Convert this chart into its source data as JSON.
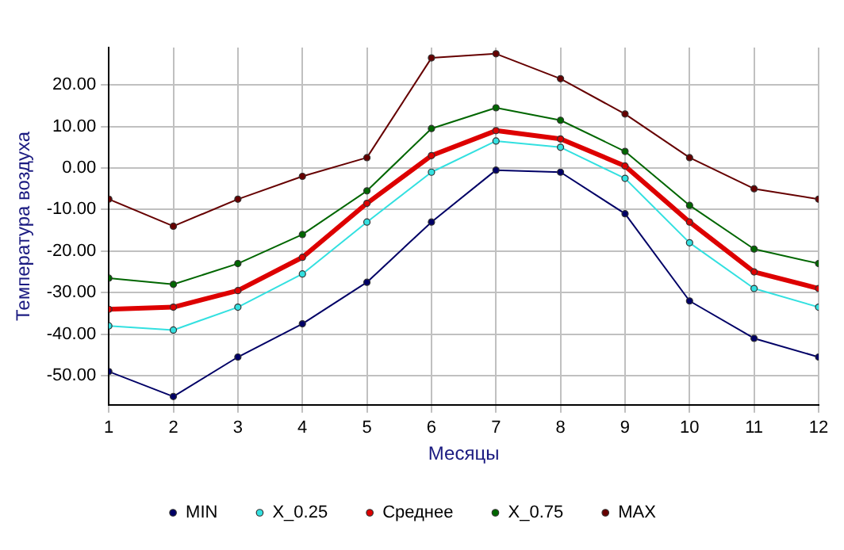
{
  "chart_data": {
    "type": "line",
    "xlabel": "Месяцы",
    "ylabel": "Температура воздуха",
    "x": [
      1,
      2,
      3,
      4,
      5,
      6,
      7,
      8,
      9,
      10,
      11,
      12
    ],
    "series": [
      {
        "name": "MIN",
        "color": "#000066",
        "values": [
          -49,
          -55,
          -45.5,
          -37.5,
          -27.5,
          -13,
          -0.5,
          -1,
          -11,
          -32,
          -41,
          -45.5
        ]
      },
      {
        "name": "X_0.25",
        "color": "#33e0e0",
        "values": [
          -38,
          -39,
          -33.5,
          -25.5,
          -13,
          -1,
          6.5,
          5,
          -2.5,
          -18,
          -29,
          -33.5
        ]
      },
      {
        "name": "Среднее",
        "color": "#dd0000",
        "values": [
          -34,
          -33.5,
          -29.5,
          -21.5,
          -8.5,
          3,
          9,
          7,
          0.5,
          -13,
          -25,
          -29
        ]
      },
      {
        "name": "X_0.75",
        "color": "#006600",
        "values": [
          -26.5,
          -28,
          -23,
          -16,
          -5.5,
          9.5,
          14.5,
          11.5,
          4,
          -9,
          -19.5,
          -23
        ]
      },
      {
        "name": "MAX",
        "color": "#660000",
        "values": [
          -7.5,
          -14,
          -7.5,
          -2,
          2.5,
          26.5,
          27.5,
          21.5,
          13,
          2.5,
          -5,
          -7.5
        ]
      }
    ],
    "xlim": [
      1,
      12
    ],
    "xticks": [
      1,
      2,
      3,
      4,
      5,
      6,
      7,
      8,
      9,
      10,
      11,
      12
    ],
    "ylim": [
      -57,
      29
    ],
    "yticks": [
      {
        "value": -50,
        "label": "-50.00"
      },
      {
        "value": -40,
        "label": "-40.00"
      },
      {
        "value": -30,
        "label": "-30.00"
      },
      {
        "value": -20,
        "label": "-20.00"
      },
      {
        "value": -10,
        "label": "-10.00"
      },
      {
        "value": 0,
        "label": "0.00"
      },
      {
        "value": 10,
        "label": "10.00"
      },
      {
        "value": 20,
        "label": "20.00"
      }
    ],
    "grid": true,
    "legend": "bottom",
    "marker": "circle",
    "line_style": "solid"
  }
}
